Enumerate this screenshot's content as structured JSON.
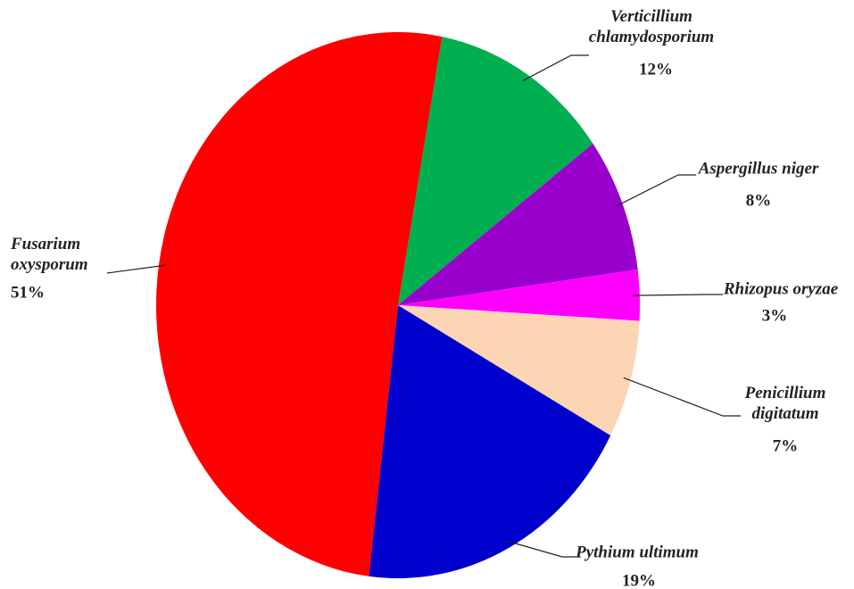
{
  "chart_data": {
    "type": "pie",
    "categories": [
      "Verticillium chlamydosporium",
      "Aspergillus niger",
      "Rhizopus oryzae",
      "Penicillium digitatum",
      "Pythium ultimum",
      "Fusarium oxysporum"
    ],
    "values": [
      12,
      8,
      3,
      7,
      19,
      51
    ],
    "value_labels": [
      "12%",
      "8%",
      "3%",
      "7%",
      "19%",
      "51%"
    ],
    "colors": [
      "#00b050",
      "#9900cc",
      "#ff00ff",
      "#fcd5b5",
      "#0000cc",
      "#ff0000"
    ]
  }
}
